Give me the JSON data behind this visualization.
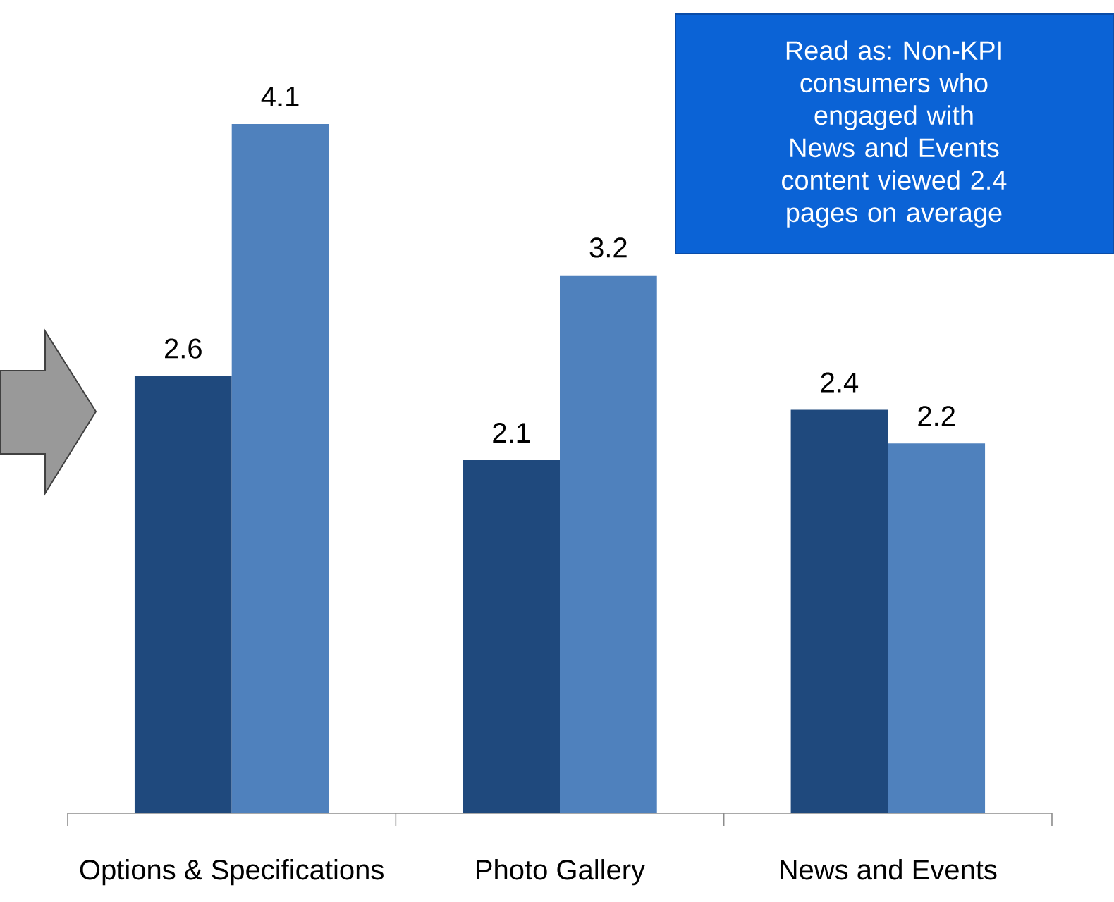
{
  "chart_data": {
    "type": "bar",
    "categories": [
      "Options & Specifications",
      "Photo Gallery",
      "News and Events"
    ],
    "series": [
      {
        "color": "#1f497d",
        "values": [
          2.6,
          2.1,
          2.4
        ]
      },
      {
        "color": "#4f81bd",
        "values": [
          4.1,
          3.2,
          2.2
        ]
      }
    ],
    "data_labels": true,
    "annotations": [
      "Read as: Non-KPI consumers who engaged with News and Events content viewed 2.4 pages on average"
    ]
  }
}
